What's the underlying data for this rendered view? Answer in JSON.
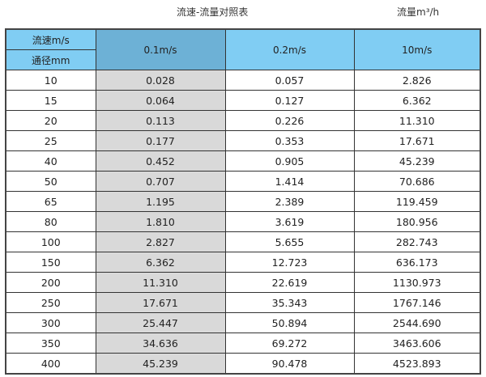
{
  "title": "流速-流量对照表",
  "unit_label": "流量m³/h",
  "header": {
    "velocity_label": "流速m/s",
    "diameter_label": "通径mm",
    "columns": [
      "0.1m/s",
      "0.2m/s",
      "10m/s"
    ]
  },
  "colors": {
    "header": "#80cdf3",
    "highlight_header": "#6db1d6",
    "highlight_column": "#d9d9d9"
  },
  "rows": [
    [
      "10",
      "0.028",
      "0.057",
      "2.826"
    ],
    [
      "15",
      "0.064",
      "0.127",
      "6.362"
    ],
    [
      "20",
      "0.113",
      "0.226",
      "11.310"
    ],
    [
      "25",
      "0.177",
      "0.353",
      "17.671"
    ],
    [
      "40",
      "0.452",
      "0.905",
      "45.239"
    ],
    [
      "50",
      "0.707",
      "1.414",
      "70.686"
    ],
    [
      "65",
      "1.195",
      "2.389",
      "119.459"
    ],
    [
      "80",
      "1.810",
      "3.619",
      "180.956"
    ],
    [
      "100",
      "2.827",
      "5.655",
      "282.743"
    ],
    [
      "150",
      "6.362",
      "12.723",
      "636.173"
    ],
    [
      "200",
      "11.310",
      "22.619",
      "1130.973"
    ],
    [
      "250",
      "17.671",
      "35.343",
      "1767.146"
    ],
    [
      "300",
      "25.447",
      "50.894",
      "2544.690"
    ],
    [
      "350",
      "34.636",
      "69.272",
      "3463.606"
    ],
    [
      "400",
      "45.239",
      "90.478",
      "4523.893"
    ]
  ]
}
